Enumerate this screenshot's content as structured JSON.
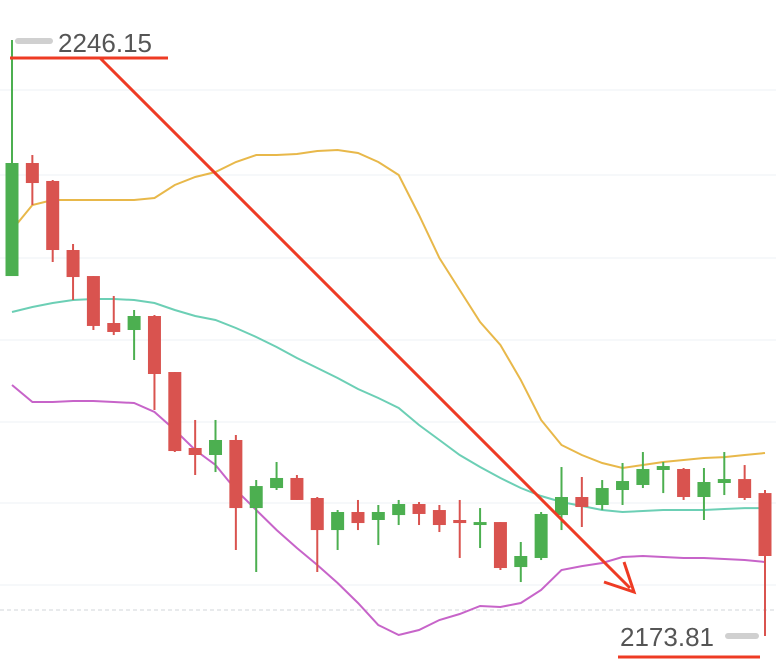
{
  "chart_data": {
    "type": "candlestick",
    "up_color": "#4caf50",
    "down_color": "#d9534f",
    "open": [
      2217.5,
      2231.22,
      2229.04,
      2220.66,
      2217.5,
      2211.8,
      2210.95,
      2212.65,
      2205.85,
      2196.63,
      2195.78,
      2197.6,
      2189.34,
      2191.77,
      2192.99,
      2190.56,
      2186.67,
      2188.86,
      2187.89,
      2188.49,
      2189.83,
      2189.1,
      2187.89,
      2187.28,
      2187.64,
      2182.18,
      2183.28,
      2188.49,
      2190.68,
      2189.71,
      2191.53,
      2192.14,
      2193.96,
      2194.08,
      2190.68,
      2192.38,
      2192.86,
      2191.16
    ],
    "high": [
      2246.15,
      2232.19,
      2229.16,
      2221.39,
      2217.5,
      2215.08,
      2213.38,
      2212.77,
      2205.85,
      2200.03,
      2200.03,
      2198.2,
      2192.74,
      2194.93,
      2193.35,
      2190.68,
      2189.1,
      2190.32,
      2189.71,
      2190.32,
      2190.07,
      2189.71,
      2190.32,
      2189.34,
      2187.64,
      2185.22,
      2188.86,
      2194.32,
      2193.11,
      2192.74,
      2194.81,
      2196.14,
      2194.93,
      2194.2,
      2194.2,
      2196.14,
      2194.56,
      2191.53
    ],
    "low": [
      2217.5,
      2226.12,
      2219.2,
      2214.59,
      2210.95,
      2210.34,
      2207.31,
      2201.24,
      2196.14,
      2193.35,
      2193.71,
      2184.25,
      2181.58,
      2191.53,
      2190.32,
      2181.58,
      2184.25,
      2186.67,
      2184.85,
      2187.28,
      2187.28,
      2186.43,
      2183.28,
      2184.49,
      2181.82,
      2180.36,
      2183.03,
      2186.67,
      2187.04,
      2189.1,
      2189.71,
      2191.77,
      2191.16,
      2190.32,
      2187.89,
      2190.92,
      2190.32,
      2173.81
    ],
    "close": [
      2231.22,
      2228.79,
      2220.66,
      2217.38,
      2211.44,
      2210.71,
      2212.65,
      2205.61,
      2196.26,
      2195.78,
      2197.6,
      2189.34,
      2192.01,
      2192.99,
      2190.32,
      2186.67,
      2188.86,
      2187.52,
      2188.86,
      2189.83,
      2188.62,
      2187.28,
      2187.52,
      2187.64,
      2182.06,
      2183.52,
      2188.62,
      2190.68,
      2189.47,
      2191.77,
      2192.62,
      2194.08,
      2194.44,
      2190.68,
      2192.5,
      2192.86,
      2190.56,
      2183.52
    ],
    "lines": [
      {
        "color": "#e8b84a",
        "values": [
          2223.09,
          2226.12,
          2226.73,
          2226.73,
          2226.73,
          2226.73,
          2226.73,
          2226.97,
          2228.55,
          2229.52,
          2230.13,
          2231.34,
          2232.19,
          2232.19,
          2232.31,
          2232.68,
          2232.8,
          2232.43,
          2231.34,
          2229.76,
          2224.91,
          2219.69,
          2215.8,
          2211.92,
          2209.13,
          2204.88,
          2200.03,
          2196.99,
          2195.78,
          2194.81,
          2194.2,
          2194.56,
          2194.93,
          2195.17,
          2195.41,
          2195.53,
          2195.78,
          2196.02
        ]
      },
      {
        "color": "#6ccfb5",
        "values": [
          2213.13,
          2213.74,
          2214.23,
          2214.59,
          2214.71,
          2214.71,
          2214.59,
          2214.23,
          2213.38,
          2212.65,
          2212.16,
          2211.19,
          2210.1,
          2208.89,
          2207.55,
          2206.34,
          2205.12,
          2203.79,
          2202.7,
          2201.48,
          2199.42,
          2197.6,
          2195.78,
          2194.32,
          2192.99,
          2191.77,
          2190.8,
          2190.07,
          2189.59,
          2189.1,
          2188.86,
          2188.98,
          2189.1,
          2189.1,
          2189.1,
          2189.22,
          2189.34,
          2189.34
        ]
      },
      {
        "color": "#c764c9",
        "values": [
          2204.27,
          2202.21,
          2202.21,
          2202.33,
          2202.33,
          2202.21,
          2202.09,
          2201.0,
          2198.81,
          2196.38,
          2194.56,
          2191.53,
          2189.1,
          2186.67,
          2184.49,
          2182.43,
          2180.24,
          2177.81,
          2175.14,
          2173.93,
          2174.54,
          2175.75,
          2176.48,
          2177.45,
          2177.33,
          2177.81,
          2179.39,
          2181.82,
          2182.3,
          2182.67,
          2183.4,
          2183.52,
          2183.4,
          2183.28,
          2183.28,
          2183.15,
          2183.03,
          2182.79
        ]
      }
    ],
    "annotations": [
      {
        "text": "2246.15"
      },
      {
        "text": "2173.81"
      }
    ]
  }
}
